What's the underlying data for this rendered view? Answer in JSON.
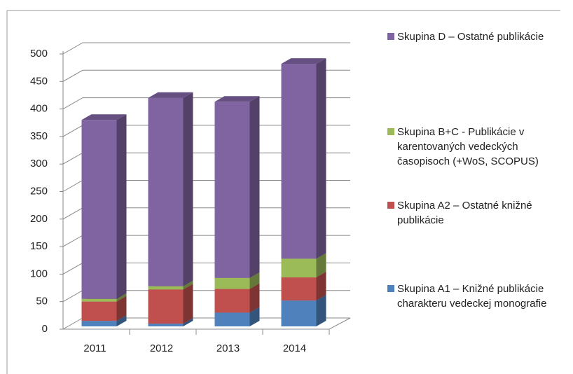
{
  "chart_data": {
    "type": "bar",
    "stacked": true,
    "categories": [
      "2011",
      "2012",
      "2013",
      "2014"
    ],
    "series": [
      {
        "name": "Skupina A1 – Knižné publikácie charakteru vedeckej monografie",
        "color": "#4f81bd",
        "values": [
          10,
          5,
          25,
          47
        ]
      },
      {
        "name": "Skupina A2 – Ostatné knižné publikácie",
        "color": "#c0504d",
        "values": [
          35,
          62,
          43,
          42
        ]
      },
      {
        "name": "Skupina B+C  - Publikácie v karentovaných vedeckých časopisoch (+WoS, SCOPUS)",
        "color": "#9bbb59",
        "values": [
          5,
          6,
          20,
          34
        ]
      },
      {
        "name": "Skupina D – Ostatné publikácie",
        "color": "#8064a2",
        "values": [
          325,
          342,
          320,
          354
        ]
      }
    ],
    "ylim": [
      0,
      500
    ],
    "yticks": [
      0,
      50,
      100,
      150,
      200,
      250,
      300,
      350,
      400,
      450,
      500
    ],
    "grid": true
  }
}
